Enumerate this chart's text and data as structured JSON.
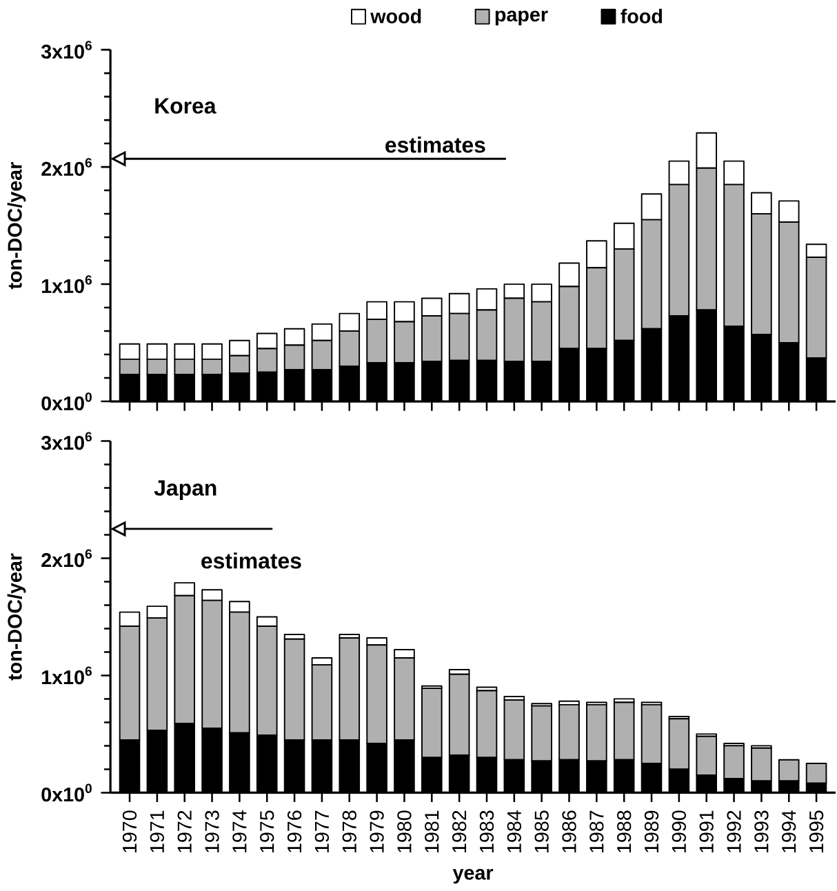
{
  "chart_data": [
    {
      "type": "bar",
      "stacked": true,
      "legend": "top",
      "tick_labels": "y",
      "ylabel": "ton-DOC/year",
      "annotations": [
        "Korea",
        "estimates"
      ],
      "categories": [
        "1970",
        "1971",
        "1972",
        "1973",
        "1974",
        "1975",
        "1976",
        "1977",
        "1978",
        "1979",
        "1980",
        "1981",
        "1982",
        "1983",
        "1984",
        "1985",
        "1986",
        "1987",
        "1988",
        "1989",
        "1990",
        "1991",
        "1992",
        "1993",
        "1994",
        "1995"
      ],
      "ylim": [
        0,
        3000000
      ],
      "yticks": [
        {
          "value": 0,
          "label": "0x10$^{0}$"
        },
        {
          "value": 1000000,
          "label": "1x10$^{6}$"
        },
        {
          "value": 2000000,
          "label": "2x10$^{6}$"
        },
        {
          "value": 3000000,
          "label": "3x10$^{6}$"
        }
      ],
      "series": [
        {
          "name": "food",
          "color": "#000000",
          "values": [
            230000,
            230000,
            230000,
            230000,
            240000,
            250000,
            270000,
            270000,
            300000,
            330000,
            330000,
            340000,
            350000,
            350000,
            340000,
            340000,
            450000,
            450000,
            520000,
            620000,
            730000,
            780000,
            640000,
            570000,
            500000,
            370000
          ]
        },
        {
          "name": "paper",
          "color": "#b0b0b0",
          "values": [
            130000,
            130000,
            130000,
            130000,
            150000,
            200000,
            210000,
            250000,
            300000,
            370000,
            350000,
            390000,
            400000,
            430000,
            540000,
            510000,
            530000,
            690000,
            780000,
            930000,
            1120000,
            1210000,
            1210000,
            1030000,
            1030000,
            860000
          ]
        },
        {
          "name": "wood",
          "color": "#ffffff",
          "values": [
            130000,
            130000,
            130000,
            130000,
            130000,
            130000,
            140000,
            140000,
            150000,
            150000,
            170000,
            150000,
            170000,
            180000,
            120000,
            150000,
            200000,
            230000,
            220000,
            220000,
            200000,
            300000,
            200000,
            180000,
            180000,
            110000
          ]
        }
      ]
    },
    {
      "type": "bar",
      "stacked": true,
      "ylabel": "ton-DOC/year",
      "xlabel": "year",
      "annotations": [
        "Japan",
        "estimates"
      ],
      "categories": [
        "1970",
        "1971",
        "1972",
        "1973",
        "1974",
        "1975",
        "1976",
        "1977",
        "1978",
        "1979",
        "1980",
        "1981",
        "1982",
        "1983",
        "1984",
        "1985",
        "1986",
        "1987",
        "1988",
        "1989",
        "1990",
        "1991",
        "1992",
        "1993",
        "1994",
        "1995"
      ],
      "ylim": [
        0,
        3000000
      ],
      "yticks": [
        {
          "value": 0,
          "label": "0x10$^{0}$"
        },
        {
          "value": 1000000,
          "label": "1x10$^{6}$"
        },
        {
          "value": 2000000,
          "label": "2x10$^{6}$"
        },
        {
          "value": 3000000,
          "label": "3x10$^{6}$"
        }
      ],
      "series": [
        {
          "color": "#000000",
          "values": [
            450000,
            530000,
            590000,
            550000,
            510000,
            490000,
            450000,
            450000,
            450000,
            420000,
            450000,
            300000,
            320000,
            300000,
            280000,
            270000,
            280000,
            270000,
            280000,
            250000,
            200000,
            150000,
            120000,
            100000,
            100000,
            80000
          ]
        },
        {
          "color": "#b0b0b0",
          "values": [
            970000,
            960000,
            1090000,
            1090000,
            1030000,
            930000,
            860000,
            640000,
            870000,
            840000,
            700000,
            590000,
            690000,
            570000,
            510000,
            470000,
            470000,
            480000,
            490000,
            500000,
            430000,
            330000,
            280000,
            280000,
            180000,
            170000
          ]
        },
        {
          "color": "#ffffff",
          "values": [
            120000,
            100000,
            110000,
            90000,
            90000,
            80000,
            40000,
            60000,
            30000,
            60000,
            70000,
            20000,
            40000,
            30000,
            30000,
            20000,
            30000,
            20000,
            30000,
            20000,
            20000,
            20000,
            20000,
            20000,
            null,
            null
          ]
        }
      ]
    }
  ]
}
